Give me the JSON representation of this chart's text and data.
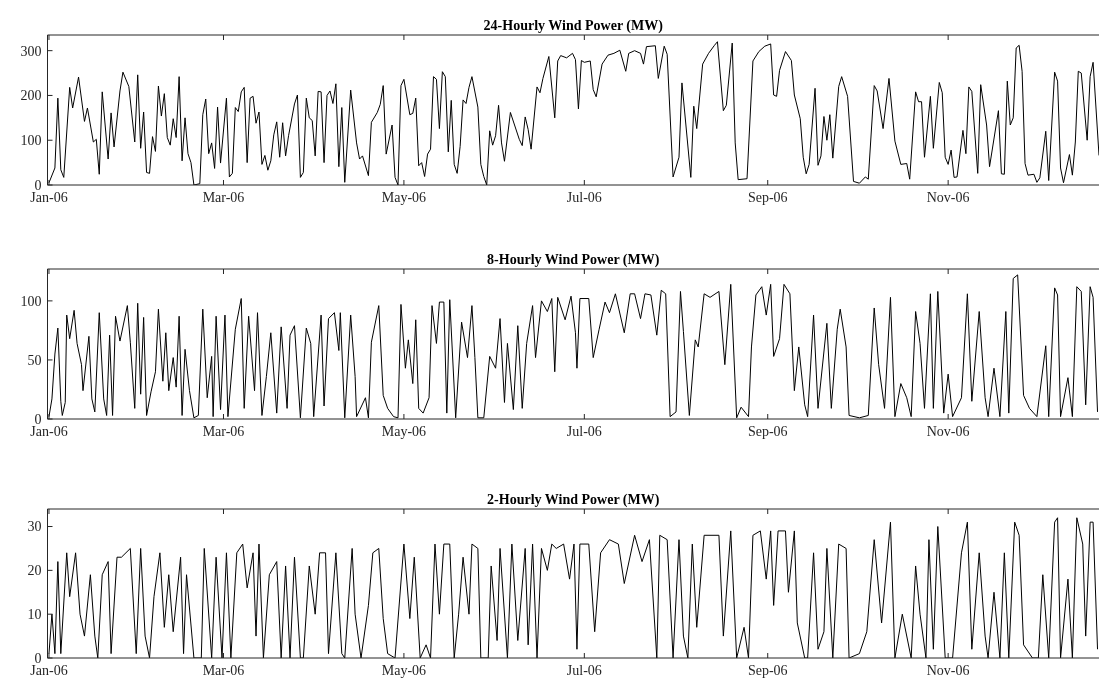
{
  "chart_data": [
    {
      "type": "line",
      "title": "24-Hourly Wind Power (MW)",
      "color": "#000000",
      "xlim": [
        "2005-12-31T12:00",
        "2006-12-22"
      ],
      "ylim": [
        0,
        335
      ],
      "yticks": [
        0,
        100,
        200,
        300
      ],
      "xticks": [
        {
          "value": "2006-01-01",
          "label": "Jan-06"
        },
        {
          "value": "2006-03-01",
          "label": "Mar-06"
        },
        {
          "value": "2006-05-01",
          "label": "May-06"
        },
        {
          "value": "2006-07-01",
          "label": "Jul-06"
        },
        {
          "value": "2006-09-01",
          "label": "Sep-06"
        },
        {
          "value": "2006-11-01",
          "label": "Nov-06"
        }
      ],
      "x": [
        "2006-01-01",
        "2006-01-03",
        "2006-01-04",
        "2006-01-05",
        "2006-01-06",
        "2006-01-08",
        "2006-01-09",
        "2006-01-11",
        "2006-01-13",
        "2006-01-14",
        "2006-01-16",
        "2006-01-17",
        "2006-01-18",
        "2006-01-19",
        "2006-01-21",
        "2006-01-22",
        "2006-01-23",
        "2006-01-25",
        "2006-01-26",
        "2006-01-28",
        "2006-01-30",
        "2006-01-31",
        "2006-02-01",
        "2006-02-02",
        "2006-02-03",
        "2006-02-04",
        "2006-02-05",
        "2006-02-06",
        "2006-02-07",
        "2006-02-08",
        "2006-02-09",
        "2006-02-10",
        "2006-02-11",
        "2006-02-12",
        "2006-02-13",
        "2006-02-14",
        "2006-02-15",
        "2006-02-16",
        "2006-02-17",
        "2006-02-18",
        "2006-02-19",
        "2006-02-21",
        "2006-02-22",
        "2006-02-23",
        "2006-02-24",
        "2006-02-25",
        "2006-02-26",
        "2006-02-27",
        "2006-02-28",
        "2006-03-02",
        "2006-03-03",
        "2006-03-04",
        "2006-03-05",
        "2006-03-06",
        "2006-03-07",
        "2006-03-08",
        "2006-03-09",
        "2006-03-10",
        "2006-03-11",
        "2006-03-12",
        "2006-03-13",
        "2006-03-14",
        "2006-03-15",
        "2006-03-16",
        "2006-03-17",
        "2006-03-18",
        "2006-03-19",
        "2006-03-20",
        "2006-03-21",
        "2006-03-22",
        "2006-03-23",
        "2006-03-25",
        "2006-03-26",
        "2006-03-27",
        "2006-03-28",
        "2006-03-29",
        "2006-03-30",
        "2006-03-31",
        "2006-04-01",
        "2006-04-02",
        "2006-04-03",
        "2006-04-04",
        "2006-04-05",
        "2006-04-06",
        "2006-04-07",
        "2006-04-08",
        "2006-04-09",
        "2006-04-10",
        "2006-04-11",
        "2006-04-13",
        "2006-04-15",
        "2006-04-16",
        "2006-04-17",
        "2006-04-19",
        "2006-04-20",
        "2006-04-22",
        "2006-04-23",
        "2006-04-24",
        "2006-04-25",
        "2006-04-27",
        "2006-04-28",
        "2006-04-29",
        "2006-04-30",
        "2006-05-01",
        "2006-05-03",
        "2006-05-04",
        "2006-05-05",
        "2006-05-06",
        "2006-05-07",
        "2006-05-08",
        "2006-05-09",
        "2006-05-10",
        "2006-05-11",
        "2006-05-12",
        "2006-05-13",
        "2006-05-14",
        "2006-05-15",
        "2006-05-16",
        "2006-05-17",
        "2006-05-18",
        "2006-05-19",
        "2006-05-20",
        "2006-05-21",
        "2006-05-22",
        "2006-05-23",
        "2006-05-24",
        "2006-05-26",
        "2006-05-27",
        "2006-05-28",
        "2006-05-29",
        "2006-05-30",
        "2006-05-31",
        "2006-06-01",
        "2006-06-02",
        "2006-06-03",
        "2006-06-04",
        "2006-06-06",
        "2006-06-09",
        "2006-06-10",
        "2006-06-11",
        "2006-06-12",
        "2006-06-13",
        "2006-06-15",
        "2006-06-16",
        "2006-06-17",
        "2006-06-19",
        "2006-06-21",
        "2006-06-22",
        "2006-06-23",
        "2006-06-25",
        "2006-06-27",
        "2006-06-28",
        "2006-06-29",
        "2006-06-30",
        "2006-07-01",
        "2006-07-03",
        "2006-07-04",
        "2006-07-05",
        "2006-07-07",
        "2006-07-09",
        "2006-07-11",
        "2006-07-13",
        "2006-07-15",
        "2006-07-16",
        "2006-07-18",
        "2006-07-20",
        "2006-07-21",
        "2006-07-22",
        "2006-07-25",
        "2006-07-26",
        "2006-07-28",
        "2006-07-29",
        "2006-07-31",
        "2006-08-02",
        "2006-08-03",
        "2006-08-06",
        "2006-08-07",
        "2006-08-08",
        "2006-08-10",
        "2006-08-12",
        "2006-08-14",
        "2006-08-15",
        "2006-08-17",
        "2006-08-18",
        "2006-08-20",
        "2006-08-21",
        "2006-08-22",
        "2006-08-25",
        "2006-08-27",
        "2006-08-29",
        "2006-08-31",
        "2006-09-02",
        "2006-09-03",
        "2006-09-04",
        "2006-09-05",
        "2006-09-07",
        "2006-09-09",
        "2006-09-10",
        "2006-09-12",
        "2006-09-13",
        "2006-09-14",
        "2006-09-15",
        "2006-09-17",
        "2006-09-18",
        "2006-09-19",
        "2006-09-20",
        "2006-09-21",
        "2006-09-22",
        "2006-09-23",
        "2006-09-25",
        "2006-09-26",
        "2006-09-28",
        "2006-09-30",
        "2006-10-02",
        "2006-10-04",
        "2006-10-05",
        "2006-10-07",
        "2006-10-08",
        "2006-10-10",
        "2006-10-12",
        "2006-10-14",
        "2006-10-16",
        "2006-10-18",
        "2006-10-19",
        "2006-10-21",
        "2006-10-22",
        "2006-10-23",
        "2006-10-24",
        "2006-10-26",
        "2006-10-27",
        "2006-10-29",
        "2006-10-30",
        "2006-10-31",
        "2006-11-01",
        "2006-11-02",
        "2006-11-03",
        "2006-11-04",
        "2006-11-06",
        "2006-11-07",
        "2006-11-08",
        "2006-11-09",
        "2006-11-11",
        "2006-11-12",
        "2006-11-14",
        "2006-11-15",
        "2006-11-18",
        "2006-11-19",
        "2006-11-20",
        "2006-11-21",
        "2006-11-22",
        "2006-11-23",
        "2006-11-24",
        "2006-11-25",
        "2006-11-26",
        "2006-11-27",
        "2006-11-28",
        "2006-11-30",
        "2006-12-01",
        "2006-12-02",
        "2006-12-04",
        "2006-12-05",
        "2006-12-07",
        "2006-12-08",
        "2006-12-09",
        "2006-12-10",
        "2006-12-12",
        "2006-12-13",
        "2006-12-14",
        "2006-12-15",
        "2006-12-16",
        "2006-12-18",
        "2006-12-19",
        "2006-12-20",
        "2006-12-22"
      ],
      "values": [
        5,
        38,
        194,
        34,
        17,
        218,
        172,
        241,
        142,
        172,
        96,
        102,
        24,
        208,
        58,
        161,
        85,
        210,
        252,
        220,
        96,
        246,
        82,
        163,
        28,
        26,
        108,
        75,
        221,
        154,
        204,
        106,
        89,
        148,
        106,
        242,
        54,
        150,
        70,
        50,
        0,
        3,
        157,
        192,
        70,
        94,
        37,
        174,
        49,
        194,
        18,
        26,
        173,
        164,
        208,
        218,
        50,
        194,
        198,
        138,
        163,
        46,
        66,
        33,
        54,
        112,
        141,
        62,
        139,
        65,
        110,
        181,
        201,
        17,
        28,
        194,
        150,
        144,
        65,
        209,
        208,
        50,
        200,
        210,
        182,
        226,
        41,
        173,
        6,
        212,
        94,
        58,
        65,
        21,
        140,
        162,
        180,
        222,
        69,
        134,
        17,
        0,
        222,
        236,
        157,
        160,
        194,
        43,
        50,
        19,
        69,
        80,
        242,
        236,
        126,
        253,
        242,
        74,
        189,
        46,
        26,
        86,
        190,
        182,
        218,
        242,
        174,
        46,
        19,
        0,
        121,
        89,
        110,
        178,
        94,
        53,
        162,
        102,
        88,
        152,
        124,
        80,
        219,
        206,
        238,
        287,
        150,
        277,
        289,
        284,
        294,
        280,
        170,
        278,
        274,
        277,
        213,
        197,
        270,
        290,
        294,
        301,
        254,
        294,
        300,
        294,
        270,
        309,
        311,
        238,
        310,
        292,
        18,
        62,
        228,
        17,
        176,
        126,
        270,
        294,
        312,
        320,
        166,
        178,
        317,
        94,
        12,
        14,
        277,
        298,
        310,
        315,
        201,
        198,
        256,
        298,
        278,
        201,
        148,
        62,
        25,
        46,
        216,
        44,
        65,
        153,
        100,
        157,
        60,
        220,
        242,
        198,
        8,
        4,
        18,
        13,
        222,
        210,
        126,
        238,
        98,
        46,
        48,
        13,
        208,
        186,
        186,
        62,
        198,
        82,
        229,
        206,
        62,
        46,
        78,
        17,
        18,
        122,
        70,
        219,
        209,
        26,
        224,
        134,
        41,
        166,
        25,
        24,
        232,
        134,
        150,
        306,
        312,
        254,
        48,
        22,
        24,
        6,
        16,
        120,
        10,
        252,
        232,
        38,
        5,
        68,
        22,
        96,
        254,
        250,
        100,
        242,
        274,
        66
      ]
    },
    {
      "type": "line",
      "title": "8-Hourly Wind Power (MW)",
      "color": "#000000",
      "xlim": [
        "2005-12-31T12:00",
        "2006-12-22"
      ],
      "ylim": [
        0,
        127
      ],
      "yticks": [
        0,
        50,
        100
      ],
      "xticks": [
        {
          "value": "2006-01-01",
          "label": "Jan-06"
        },
        {
          "value": "2006-03-01",
          "label": "Mar-06"
        },
        {
          "value": "2006-05-01",
          "label": "May-06"
        },
        {
          "value": "2006-07-01",
          "label": "Jul-06"
        },
        {
          "value": "2006-09-01",
          "label": "Sep-06"
        },
        {
          "value": "2006-11-01",
          "label": "Nov-06"
        }
      ],
      "x": [
        "2006-01-01",
        "2006-01-02",
        "2006-01-03",
        "2006-01-04",
        "2006-01-05",
        "2006-01-05T12:00",
        "2006-01-06T12:00",
        "2006-01-07",
        "2006-01-08",
        "2006-01-09T12:00",
        "2006-01-10T12:00",
        "2006-01-12",
        "2006-01-12T12:00",
        "2006-01-14T12:00",
        "2006-01-15T12:00",
        "2006-01-16T12:00",
        "2006-01-18",
        "2006-01-19T12:00",
        "2006-01-20T12:00",
        "2006-01-21T12:00",
        "2006-01-22T12:00",
        "2006-01-23T12:00",
        "2006-01-25",
        "2006-01-27T12:00",
        "2006-01-28T12:00",
        "2006-01-30",
        "2006-01-31",
        "2006-02-01",
        "2006-02-02",
        "2006-02-03",
        "2006-02-04T12:00",
        "2006-02-06",
        "2006-02-07",
        "2006-02-08T12:00",
        "2006-02-09T12:00",
        "2006-02-10T12:00",
        "2006-02-12",
        "2006-02-13",
        "2006-02-14",
        "2006-02-15",
        "2006-02-16",
        "2006-02-17T12:00",
        "2006-02-19",
        "2006-02-20T12:00",
        "2006-02-22",
        "2006-02-23T12:00",
        "2006-02-25",
        "2006-02-25T12:00",
        "2006-02-26T12:00",
        "2006-02-28",
        "2006-03-01T12:00",
        "2006-03-02T12:00",
        "2006-03-05",
        "2006-03-07",
        "2006-03-08",
        "2006-03-09T12:00",
        "2006-03-11T12:00",
        "2006-03-12T12:00",
        "2006-03-14",
        "2006-03-15T12:00",
        "2006-03-17",
        "2006-03-19",
        "2006-03-20T12:00",
        "2006-03-22T12:00",
        "2006-03-23T12:00",
        "2006-03-25",
        "2006-03-27",
        "2006-03-29",
        "2006-03-30T12:00",
        "2006-03-31T12:00",
        "2006-04-03",
        "2006-04-04",
        "2006-04-05T12:00",
        "2006-04-07T12:00",
        "2006-04-09",
        "2006-04-09T12:00",
        "2006-04-11",
        "2006-04-13",
        "2006-04-14T12:00",
        "2006-04-15",
        "2006-04-18",
        "2006-04-19",
        "2006-04-20",
        "2006-04-22T12:00",
        "2006-04-24",
        "2006-04-25T12:00",
        "2006-04-27T12:00",
        "2006-04-29",
        "2006-04-30",
        "2006-05-01T12:00",
        "2006-05-02T12:00",
        "2006-05-04",
        "2006-05-05",
        "2006-05-06",
        "2006-05-07T12:00",
        "2006-05-09T12:00",
        "2006-05-10T12:00",
        "2006-05-12",
        "2006-05-13",
        "2006-05-14T12:00",
        "2006-05-15T12:00",
        "2006-05-16T12:00",
        "2006-05-18T12:00",
        "2006-05-20T12:00",
        "2006-05-22T12:00",
        "2006-05-24",
        "2006-05-25",
        "2006-05-26",
        "2006-05-28",
        "2006-05-30",
        "2006-06-01",
        "2006-06-02T12:00",
        "2006-06-04",
        "2006-06-05",
        "2006-06-07",
        "2006-06-08T12:00",
        "2006-06-10",
        "2006-06-11T12:00",
        "2006-06-13T12:00",
        "2006-06-14T12:00",
        "2006-06-16T12:00",
        "2006-06-18T12:00",
        "2006-06-20",
        "2006-06-21",
        "2006-06-22",
        "2006-06-24T12:00",
        "2006-06-26T12:00",
        "2006-06-28",
        "2006-06-28T12:00",
        "2006-06-29T12:00",
        "2006-07-02T12:00",
        "2006-07-04",
        "2006-07-06",
        "2006-07-08",
        "2006-07-09T12:00",
        "2006-07-11T12:00",
        "2006-07-14T12:00",
        "2006-07-16T12:00",
        "2006-07-18",
        "2006-07-20",
        "2006-07-21T12:00",
        "2006-07-23T12:00",
        "2006-07-25T12:00",
        "2006-07-27",
        "2006-07-28T12:00",
        "2006-07-30",
        "2006-08-01",
        "2006-08-02T12:00",
        "2006-08-03T12:00",
        "2006-08-05T12:00",
        "2006-08-07T12:00",
        "2006-08-08T12:00",
        "2006-08-10T12:00",
        "2006-08-12T12:00",
        "2006-08-15T12:00",
        "2006-08-17T12:00",
        "2006-08-19T12:00",
        "2006-08-21T12:00",
        "2006-08-23",
        "2006-08-25T12:00",
        "2006-08-26T12:00",
        "2006-08-28",
        "2006-08-30",
        "2006-08-31T12:00",
        "2006-09-02",
        "2006-09-03",
        "2006-09-05",
        "2006-09-06T12:00",
        "2006-09-08T12:00",
        "2006-09-10",
        "2006-09-11T12:00",
        "2006-09-13T12:00",
        "2006-09-14T12:00",
        "2006-09-16T12:00",
        "2006-09-18",
        "2006-09-21",
        "2006-09-22T12:00",
        "2006-09-24T12:00",
        "2006-09-25T12:00",
        "2006-09-27T12:00",
        "2006-09-28T12:00",
        "2006-10-02",
        "2006-10-05",
        "2006-10-07",
        "2006-10-08T12:00",
        "2006-10-10T12:00",
        "2006-10-12T12:00",
        "2006-10-14",
        "2006-10-16",
        "2006-10-18",
        "2006-10-19T12:00",
        "2006-10-21",
        "2006-10-22T12:00",
        "2006-10-24",
        "2006-10-26",
        "2006-10-27",
        "2006-10-28T12:00",
        "2006-10-30T12:00",
        "2006-11-01",
        "2006-11-02T12:00",
        "2006-11-05T12:00",
        "2006-11-07T12:00",
        "2006-11-09",
        "2006-11-11T12:00",
        "2006-11-13T12:00",
        "2006-11-14T12:00",
        "2006-11-16T12:00",
        "2006-11-18T12:00",
        "2006-11-20T12:00",
        "2006-11-21T12:00",
        "2006-11-23",
        "2006-11-24T12:00",
        "2006-11-26T12:00",
        "2006-11-28T12:00",
        "2006-12-01",
        "2006-12-04",
        "2006-12-05",
        "2006-12-07",
        "2006-12-08",
        "2006-12-09",
        "2006-12-11T12:00",
        "2006-12-13",
        "2006-12-14T12:00",
        "2006-12-16",
        "2006-12-17T12:00",
        "2006-12-19",
        "2006-12-20",
        "2006-12-21T12:00"
      ],
      "values": [
        2,
        17,
        55,
        77,
        15,
        3,
        14,
        88,
        68,
        92,
        64,
        46,
        24,
        70,
        17,
        6,
        90,
        17,
        3,
        71,
        3,
        87,
        66,
        96,
        65,
        9,
        98,
        21,
        86,
        3,
        23,
        40,
        93,
        32,
        73,
        24,
        52,
        27,
        87,
        3,
        59,
        24,
        1,
        3,
        93,
        18,
        53,
        2,
        87,
        8,
        88,
        2,
        76,
        102,
        9,
        87,
        24,
        90,
        3,
        36,
        73,
        5,
        78,
        9,
        71,
        79,
        1,
        77,
        64,
        2,
        88,
        11,
        85,
        90,
        58,
        90,
        1,
        88,
        36,
        2,
        18,
        1,
        65,
        96,
        20,
        9,
        2,
        1,
        97,
        43,
        67,
        30,
        84,
        9,
        5,
        18,
        96,
        64,
        99,
        99,
        5,
        101,
        1,
        82,
        52,
        96,
        52,
        1,
        1,
        53,
        43,
        85,
        14,
        64,
        8,
        79,
        9,
        64,
        96,
        52,
        100,
        91,
        102,
        40,
        103,
        84,
        104,
        73,
        43,
        102,
        102,
        52,
        76,
        99,
        90,
        106,
        73,
        106,
        106,
        85,
        106,
        105,
        71,
        109,
        106,
        2,
        6,
        108,
        74,
        3,
        67,
        61,
        106,
        103,
        108,
        46,
        114,
        1,
        10,
        2,
        61,
        105,
        112,
        88,
        114,
        53,
        68,
        114,
        106,
        24,
        61,
        12,
        2,
        88,
        9,
        81,
        9,
        76,
        93,
        61,
        3,
        1,
        3,
        94,
        46,
        9,
        103,
        2,
        30,
        18,
        2,
        91,
        64,
        9,
        106,
        9,
        108,
        5,
        38,
        2,
        18,
        106,
        15,
        91,
        18,
        2,
        43,
        2,
        91,
        5,
        119,
        122,
        20,
        9,
        2,
        62,
        2,
        111,
        105,
        2,
        35,
        2,
        112,
        108,
        12,
        112,
        103,
        6
      ]
    },
    {
      "type": "line",
      "title": "2-Hourly Wind Power (MW)",
      "color": "#000000",
      "xlim": [
        "2005-12-31T12:00",
        "2006-12-22"
      ],
      "ylim": [
        0,
        34
      ],
      "yticks": [
        0,
        10,
        20,
        30
      ],
      "xticks": [
        {
          "value": "2006-01-01",
          "label": "Jan-06"
        },
        {
          "value": "2006-03-01",
          "label": "Mar-06"
        },
        {
          "value": "2006-05-01",
          "label": "May-06"
        },
        {
          "value": "2006-07-01",
          "label": "Jul-06"
        },
        {
          "value": "2006-09-01",
          "label": "Sep-06"
        },
        {
          "value": "2006-11-01",
          "label": "Nov-06"
        }
      ],
      "x": [
        "2006-01-01",
        "2006-01-02",
        "2006-01-03",
        "2006-01-04",
        "2006-01-05",
        "2006-01-07",
        "2006-01-08",
        "2006-01-10",
        "2006-01-11T12:00",
        "2006-01-13",
        "2006-01-15",
        "2006-01-16T12:00",
        "2006-01-17T12:00",
        "2006-01-19",
        "2006-01-21",
        "2006-01-22",
        "2006-01-24",
        "2006-01-25T12:00",
        "2006-01-28T12:00",
        "2006-01-30T12:00",
        "2006-02-01",
        "2006-02-02T12:00",
        "2006-02-04",
        "2006-02-05T12:00",
        "2006-02-07T12:00",
        "2006-02-09",
        "2006-02-10T12:00",
        "2006-02-12",
        "2006-02-14T12:00",
        "2006-02-15T12:00",
        "2006-02-16T12:00",
        "2006-02-19",
        "2006-02-21T12:00",
        "2006-02-22T12:00",
        "2006-02-25",
        "2006-02-26T12:00",
        "2006-02-28T12:00",
        "2006-03-02",
        "2006-03-03T12:00",
        "2006-03-05T12:00",
        "2006-03-07T12:00",
        "2006-03-09",
        "2006-03-11",
        "2006-03-12",
        "2006-03-13",
        "2006-03-14T12:00",
        "2006-03-16T12:00",
        "2006-03-19",
        "2006-03-20T12:00",
        "2006-03-22",
        "2006-03-23T12:00",
        "2006-03-25",
        "2006-03-27",
        "2006-03-28",
        "2006-03-30",
        "2006-04-01",
        "2006-04-02T12:00",
        "2006-04-04T12:00",
        "2006-04-05T12:00",
        "2006-04-08",
        "2006-04-10",
        "2006-04-11",
        "2006-04-13T12:00",
        "2006-04-14T12:00",
        "2006-04-16T12:00",
        "2006-04-19",
        "2006-04-20T12:00",
        "2006-04-22T12:00",
        "2006-04-24",
        "2006-04-25T12:00",
        "2006-04-28",
        "2006-05-01",
        "2006-05-03",
        "2006-05-04T12:00",
        "2006-05-06T12:00",
        "2006-05-08T12:00",
        "2006-05-10",
        "2006-05-11T12:00",
        "2006-05-13",
        "2006-05-14T12:00",
        "2006-05-16T12:00",
        "2006-05-18",
        "2006-05-19T12:00",
        "2006-05-21",
        "2006-05-23",
        "2006-05-24",
        "2006-05-26",
        "2006-05-27",
        "2006-05-29T12:00",
        "2006-05-30T12:00",
        "2006-06-01T12:00",
        "2006-06-02T12:00",
        "2006-06-05",
        "2006-06-06T12:00",
        "2006-06-08T12:00",
        "2006-06-11",
        "2006-06-12",
        "2006-06-13T12:00",
        "2006-06-15",
        "2006-06-16T12:00",
        "2006-06-18T12:00",
        "2006-06-20",
        "2006-06-21T12:00",
        "2006-06-24",
        "2006-06-26",
        "2006-06-27T12:00",
        "2006-06-28T12:00",
        "2006-06-29T12:00",
        "2006-07-02T12:00",
        "2006-07-04T12:00",
        "2006-07-06T12:00",
        "2006-07-09T12:00",
        "2006-07-12T12:00",
        "2006-07-14T12:00",
        "2006-07-18",
        "2006-07-20T12:00",
        "2006-07-23",
        "2006-07-25T12:00",
        "2006-07-26T12:00",
        "2006-07-29",
        "2006-07-31",
        "2006-08-02",
        "2006-08-03T12:00",
        "2006-08-05",
        "2006-08-06T12:00",
        "2006-08-08",
        "2006-08-10T12:00",
        "2006-08-13T12:00",
        "2006-08-15T12:00",
        "2006-08-17",
        "2006-08-19T12:00",
        "2006-08-21T12:00",
        "2006-08-24",
        "2006-08-25T12:00",
        "2006-08-27",
        "2006-08-29T12:00",
        "2006-08-31T12:00",
        "2006-09-02",
        "2006-09-03",
        "2006-09-04T12:00",
        "2006-09-07",
        "2006-09-08",
        "2006-09-10",
        "2006-09-11",
        "2006-09-13T12:00",
        "2006-09-14T12:00",
        "2006-09-16T12:00",
        "2006-09-18",
        "2006-09-20",
        "2006-09-21",
        "2006-09-23",
        "2006-09-25",
        "2006-09-27T12:00",
        "2006-09-28T12:00",
        "2006-10-02",
        "2006-10-04T12:00",
        "2006-10-07",
        "2006-10-09T12:00",
        "2006-10-12T12:00",
        "2006-10-14",
        "2006-10-16T12:00",
        "2006-10-19T12:00",
        "2006-10-21",
        "2006-10-22T12:00",
        "2006-10-24T12:00",
        "2006-10-25T12:00",
        "2006-10-27",
        "2006-10-28T12:00",
        "2006-10-31",
        "2006-11-02T12:00",
        "2006-11-05T12:00",
        "2006-11-07T12:00",
        "2006-11-09",
        "2006-11-11T12:00",
        "2006-11-13T12:00",
        "2006-11-14T12:00",
        "2006-11-16T12:00",
        "2006-11-18T12:00",
        "2006-11-20",
        "2006-11-21T12:00",
        "2006-11-23T12:00",
        "2006-11-25",
        "2006-11-26T12:00",
        "2006-11-29T12:00",
        "2006-12-01T12:00",
        "2006-12-03",
        "2006-12-05",
        "2006-12-07",
        "2006-12-08",
        "2006-12-09",
        "2006-12-11T12:00",
        "2006-12-13",
        "2006-12-14T12:00",
        "2006-12-16T12:00",
        "2006-12-17T12:00",
        "2006-12-19",
        "2006-12-20",
        "2006-12-21T12:00"
      ],
      "values": [
        1,
        10,
        1,
        22,
        1,
        24,
        14,
        24,
        10,
        5,
        19,
        5,
        0,
        19,
        22,
        1,
        23,
        23,
        25,
        1,
        25,
        5,
        0,
        14,
        24,
        7,
        19,
        6,
        23,
        1,
        19,
        0,
        0,
        25,
        0,
        23,
        0,
        24,
        0,
        24,
        26,
        16,
        24,
        5,
        26,
        0,
        19,
        22,
        0,
        21,
        0,
        23,
        0,
        0,
        21,
        10,
        24,
        24,
        1,
        24,
        1,
        0,
        25,
        10,
        0,
        12,
        24,
        25,
        9,
        1,
        0,
        26,
        9,
        23,
        0,
        3,
        0,
        26,
        10,
        26,
        26,
        0,
        10,
        23,
        10,
        26,
        25,
        0,
        0,
        21,
        4,
        25,
        0,
        26,
        4,
        25,
        3,
        26,
        0,
        25,
        20,
        26,
        25,
        26,
        18,
        26,
        2,
        26,
        26,
        6,
        24,
        27,
        26,
        17,
        28,
        22,
        27,
        0,
        28,
        27,
        0,
        27,
        5,
        0,
        26,
        7,
        28,
        28,
        28,
        5,
        29,
        0,
        7,
        0,
        28,
        29,
        18,
        29,
        12,
        29,
        29,
        15,
        29,
        8,
        0,
        0,
        24,
        2,
        6,
        25,
        0,
        26,
        25,
        0,
        1,
        6,
        27,
        8,
        31,
        0,
        10,
        0,
        21,
        10,
        0,
        27,
        2,
        30,
        0,
        0,
        24,
        31,
        2,
        24,
        5,
        0,
        15,
        0,
        24,
        0,
        31,
        28,
        3,
        0,
        0,
        19,
        0,
        31,
        32,
        0,
        18,
        0,
        32,
        26,
        5,
        31,
        31,
        2
      ]
    }
  ]
}
